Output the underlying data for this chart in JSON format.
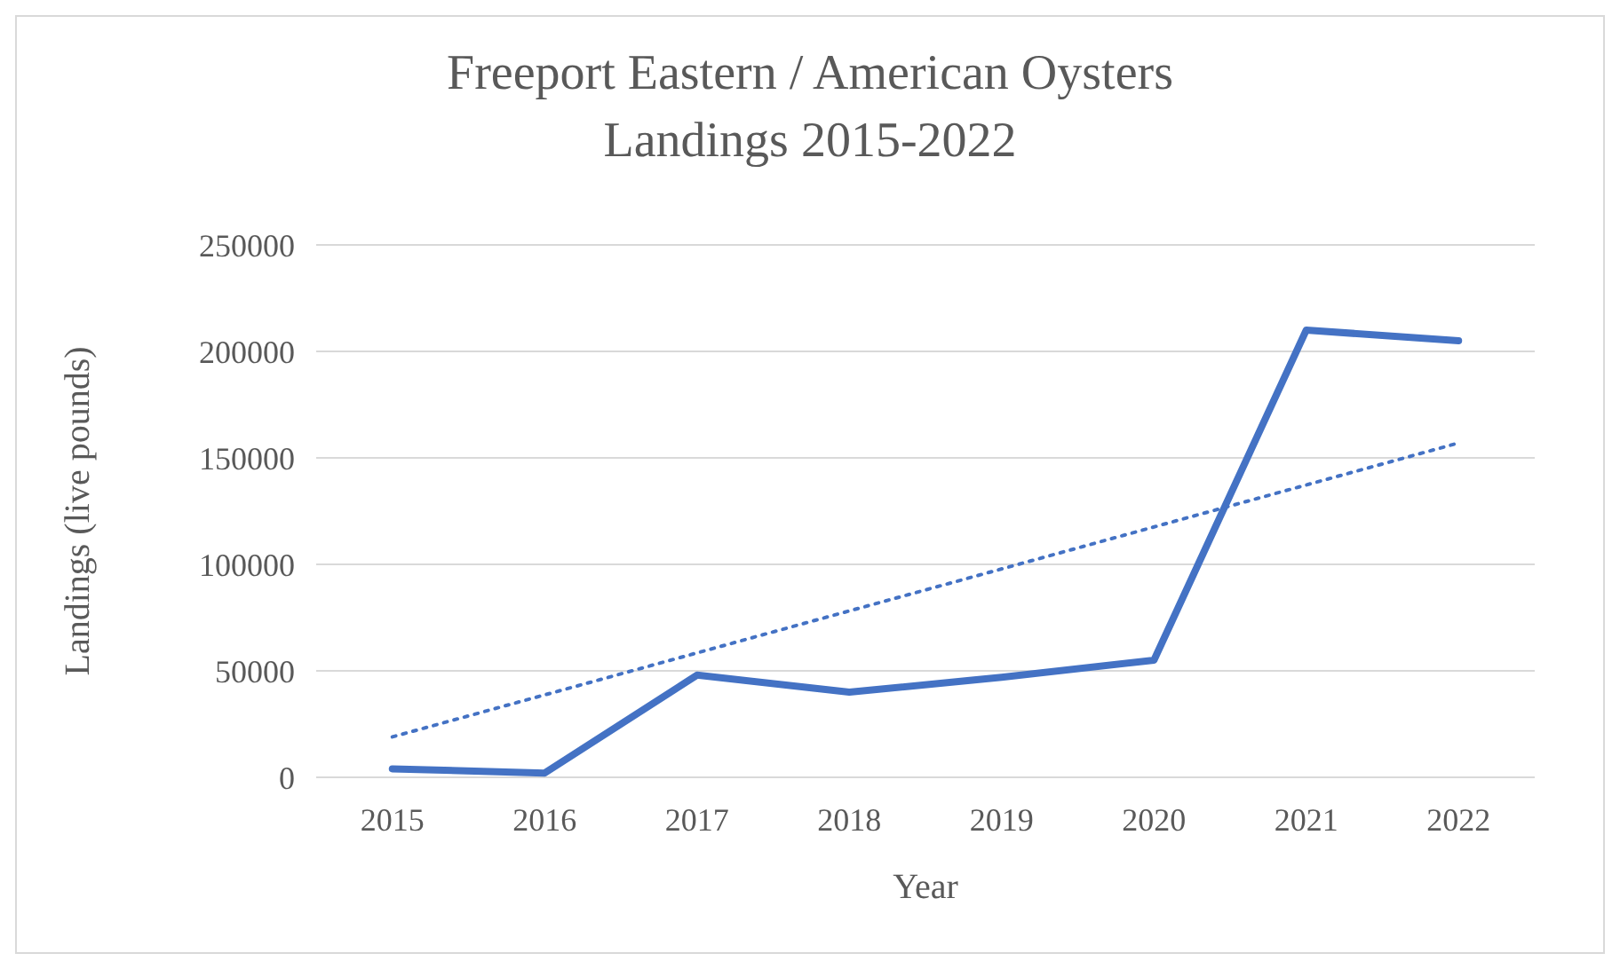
{
  "chart_data": {
    "type": "line",
    "title": "Freeport Eastern / American Oysters\nLandings 2015-2022",
    "xlabel": "Year",
    "ylabel": "Landings (live pounds)",
    "categories": [
      "2015",
      "2016",
      "2017",
      "2018",
      "2019",
      "2020",
      "2021",
      "2022"
    ],
    "series": [
      {
        "color": "#4472c4",
        "values": [
          4000,
          2000,
          48000,
          40000,
          47000,
          55000,
          210000,
          205000
        ],
        "line_style": "solid"
      },
      {
        "color": "#4472c4",
        "values": [
          19000,
          null,
          null,
          null,
          null,
          null,
          null,
          157000
        ],
        "line_style": "dotted"
      }
    ],
    "ylim": [
      0,
      250000
    ],
    "yticks": [
      0,
      50000,
      100000,
      150000,
      200000,
      250000
    ],
    "grid": "y",
    "marker": "none"
  }
}
